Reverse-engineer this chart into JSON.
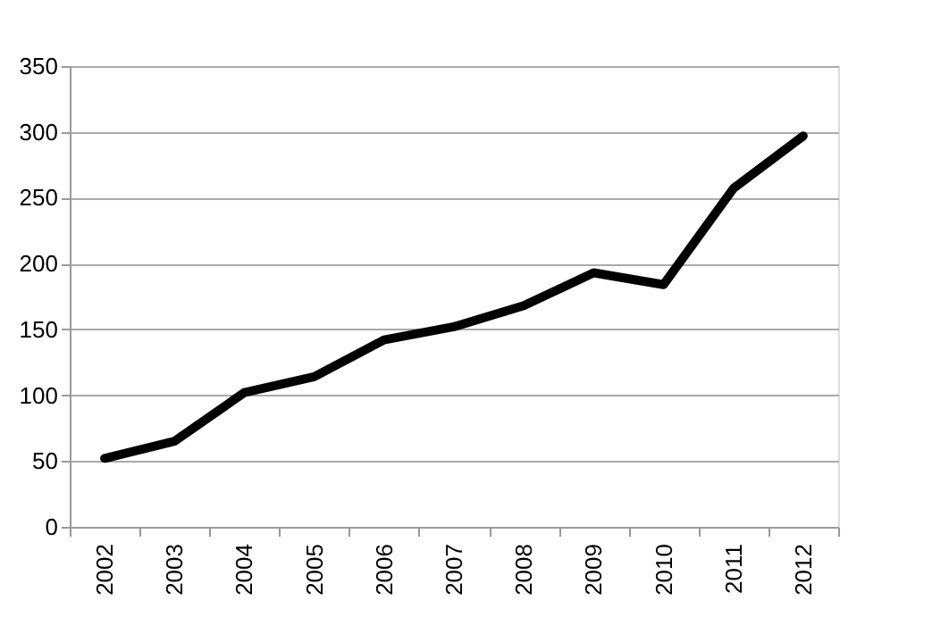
{
  "chart_data": {
    "type": "line",
    "categories": [
      "2002",
      "2003",
      "2004",
      "2005",
      "2006",
      "2007",
      "2008",
      "2009",
      "2010",
      "2011",
      "2012"
    ],
    "series": [
      {
        "color": "#000000",
        "values": [
          52,
          65,
          102,
          114,
          142,
          152,
          168,
          193,
          184,
          257,
          297
        ]
      }
    ],
    "ylim": [
      0,
      350
    ],
    "yticks": [
      0,
      50,
      100,
      150,
      200,
      250,
      300,
      350
    ],
    "grid": "y",
    "marker": "none",
    "line_style": "solid"
  }
}
